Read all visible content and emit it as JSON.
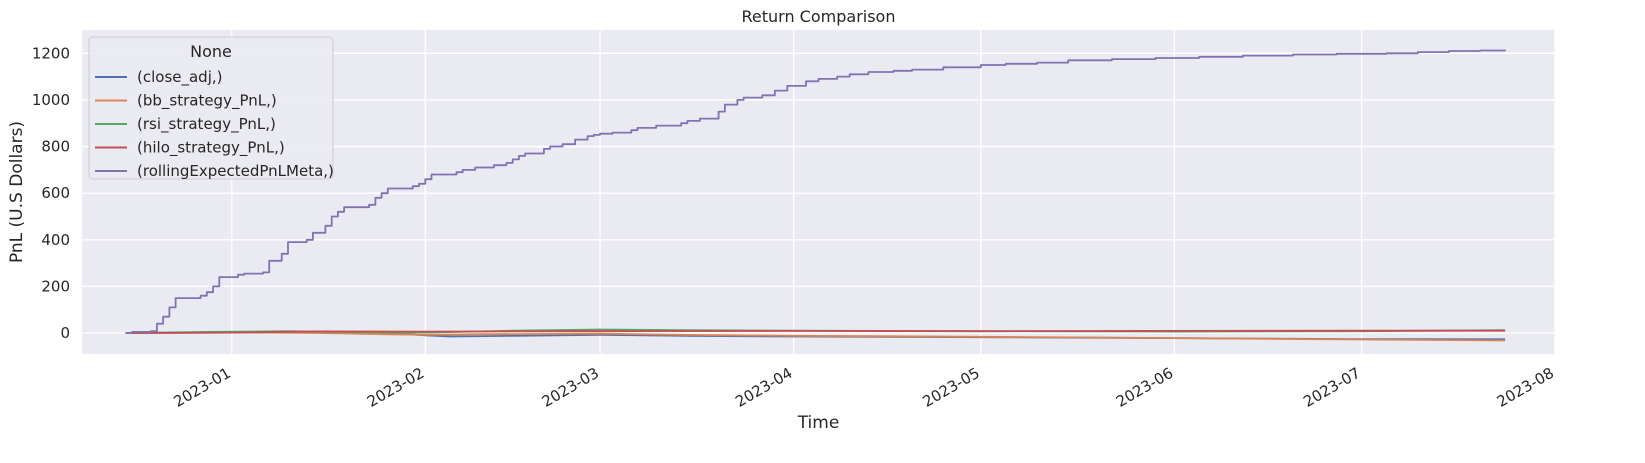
{
  "chart_data": {
    "type": "line",
    "title": "Return Comparison",
    "xlabel": "Time",
    "ylabel": "PnL (U.S Dollars)",
    "xlim": [
      "2022-12-08",
      "2023-08-01"
    ],
    "ylim": [
      -90,
      1300
    ],
    "yticks": [
      0,
      200,
      400,
      600,
      800,
      1000,
      1200
    ],
    "xticks": [
      "2023-01-01",
      "2023-02-01",
      "2023-03-01",
      "2023-04-01",
      "2023-05-01",
      "2023-06-01",
      "2023-07-01",
      "2023-08-01"
    ],
    "xtick_labels": [
      "2023-01",
      "2023-02",
      "2023-03",
      "2023-04",
      "2023-05",
      "2023-06",
      "2023-07",
      "2023-08"
    ],
    "grid": true,
    "legend": {
      "title": "None",
      "placement": "top-left"
    },
    "series": [
      {
        "name": "(close_adj,)",
        "color": "#4c72b0",
        "points": [
          [
            "2022-12-15",
            0
          ],
          [
            "2023-01-01",
            2
          ],
          [
            "2023-01-15",
            5
          ],
          [
            "2023-01-25",
            3
          ],
          [
            "2023-02-01",
            -10
          ],
          [
            "2023-02-05",
            -15
          ],
          [
            "2023-02-15",
            -12
          ],
          [
            "2023-03-01",
            -8
          ],
          [
            "2023-03-15",
            -12
          ],
          [
            "2023-04-01",
            -15
          ],
          [
            "2023-05-01",
            -18
          ],
          [
            "2023-06-01",
            -22
          ],
          [
            "2023-07-01",
            -26
          ],
          [
            "2023-07-24",
            -27
          ]
        ]
      },
      {
        "name": "(bb_strategy_PnL,)",
        "color": "#dd8452",
        "points": [
          [
            "2022-12-15",
            0
          ],
          [
            "2023-01-01",
            3
          ],
          [
            "2023-01-15",
            0
          ],
          [
            "2023-01-25",
            -5
          ],
          [
            "2023-02-01",
            -8
          ],
          [
            "2023-02-10",
            -5
          ],
          [
            "2023-03-01",
            -3
          ],
          [
            "2023-03-15",
            -8
          ],
          [
            "2023-04-01",
            -12
          ],
          [
            "2023-05-01",
            -16
          ],
          [
            "2023-06-01",
            -22
          ],
          [
            "2023-07-01",
            -28
          ],
          [
            "2023-07-24",
            -32
          ]
        ]
      },
      {
        "name": "(rsi_strategy_PnL,)",
        "color": "#55a868",
        "points": [
          [
            "2022-12-15",
            0
          ],
          [
            "2022-12-28",
            5
          ],
          [
            "2023-01-10",
            8
          ],
          [
            "2023-01-20",
            4
          ],
          [
            "2023-02-01",
            2
          ],
          [
            "2023-02-15",
            10
          ],
          [
            "2023-03-01",
            15
          ],
          [
            "2023-03-15",
            12
          ],
          [
            "2023-04-01",
            10
          ],
          [
            "2023-05-01",
            8
          ],
          [
            "2023-06-01",
            6
          ],
          [
            "2023-07-01",
            8
          ],
          [
            "2023-07-24",
            12
          ]
        ]
      },
      {
        "name": "(hilo_strategy_PnL,)",
        "color": "#c44e52",
        "points": [
          [
            "2022-12-15",
            0
          ],
          [
            "2023-01-01",
            2
          ],
          [
            "2023-01-15",
            7
          ],
          [
            "2023-02-01",
            6
          ],
          [
            "2023-03-01",
            8
          ],
          [
            "2023-04-01",
            9
          ],
          [
            "2023-05-01",
            8
          ],
          [
            "2023-06-01",
            9
          ],
          [
            "2023-07-01",
            10
          ],
          [
            "2023-07-24",
            10
          ]
        ]
      },
      {
        "name": "(rollingExpectedPnLMeta,)",
        "color": "#8172b3",
        "step": true,
        "points": [
          [
            "2022-12-15",
            0
          ],
          [
            "2022-12-16",
            5
          ],
          [
            "2022-12-19",
            8
          ],
          [
            "2022-12-20",
            40
          ],
          [
            "2022-12-21",
            70
          ],
          [
            "2022-12-22",
            110
          ],
          [
            "2022-12-23",
            150
          ],
          [
            "2022-12-27",
            160
          ],
          [
            "2022-12-28",
            175
          ],
          [
            "2022-12-29",
            200
          ],
          [
            "2022-12-30",
            240
          ],
          [
            "2023-01-02",
            250
          ],
          [
            "2023-01-03",
            255
          ],
          [
            "2023-01-06",
            260
          ],
          [
            "2023-01-07",
            310
          ],
          [
            "2023-01-09",
            340
          ],
          [
            "2023-01-10",
            390
          ],
          [
            "2023-01-13",
            400
          ],
          [
            "2023-01-14",
            430
          ],
          [
            "2023-01-16",
            460
          ],
          [
            "2023-01-17",
            500
          ],
          [
            "2023-01-18",
            520
          ],
          [
            "2023-01-19",
            540
          ],
          [
            "2023-01-23",
            550
          ],
          [
            "2023-01-24",
            580
          ],
          [
            "2023-01-25",
            600
          ],
          [
            "2023-01-26",
            620
          ],
          [
            "2023-01-30",
            630
          ],
          [
            "2023-01-31",
            640
          ],
          [
            "2023-02-01",
            660
          ],
          [
            "2023-02-02",
            680
          ],
          [
            "2023-02-06",
            690
          ],
          [
            "2023-02-07",
            700
          ],
          [
            "2023-02-09",
            710
          ],
          [
            "2023-02-12",
            720
          ],
          [
            "2023-02-14",
            730
          ],
          [
            "2023-02-15",
            745
          ],
          [
            "2023-02-16",
            760
          ],
          [
            "2023-02-17",
            770
          ],
          [
            "2023-02-20",
            790
          ],
          [
            "2023-02-21",
            800
          ],
          [
            "2023-02-23",
            810
          ],
          [
            "2023-02-25",
            830
          ],
          [
            "2023-02-27",
            845
          ],
          [
            "2023-02-28",
            850
          ],
          [
            "2023-03-01",
            855
          ],
          [
            "2023-03-03",
            860
          ],
          [
            "2023-03-06",
            870
          ],
          [
            "2023-03-07",
            880
          ],
          [
            "2023-03-10",
            890
          ],
          [
            "2023-03-14",
            900
          ],
          [
            "2023-03-15",
            910
          ],
          [
            "2023-03-17",
            920
          ],
          [
            "2023-03-20",
            950
          ],
          [
            "2023-03-21",
            980
          ],
          [
            "2023-03-23",
            1000
          ],
          [
            "2023-03-24",
            1010
          ],
          [
            "2023-03-27",
            1020
          ],
          [
            "2023-03-29",
            1040
          ],
          [
            "2023-03-31",
            1060
          ],
          [
            "2023-04-03",
            1080
          ],
          [
            "2023-04-05",
            1090
          ],
          [
            "2023-04-08",
            1100
          ],
          [
            "2023-04-10",
            1110
          ],
          [
            "2023-04-13",
            1120
          ],
          [
            "2023-04-17",
            1125
          ],
          [
            "2023-04-20",
            1130
          ],
          [
            "2023-04-25",
            1140
          ],
          [
            "2023-05-01",
            1150
          ],
          [
            "2023-05-05",
            1155
          ],
          [
            "2023-05-10",
            1160
          ],
          [
            "2023-05-15",
            1170
          ],
          [
            "2023-05-22",
            1175
          ],
          [
            "2023-05-29",
            1180
          ],
          [
            "2023-06-05",
            1185
          ],
          [
            "2023-06-12",
            1190
          ],
          [
            "2023-06-20",
            1195
          ],
          [
            "2023-06-27",
            1198
          ],
          [
            "2023-07-05",
            1200
          ],
          [
            "2023-07-10",
            1205
          ],
          [
            "2023-07-15",
            1210
          ],
          [
            "2023-07-20",
            1212
          ],
          [
            "2023-07-24",
            1215
          ]
        ]
      }
    ]
  }
}
